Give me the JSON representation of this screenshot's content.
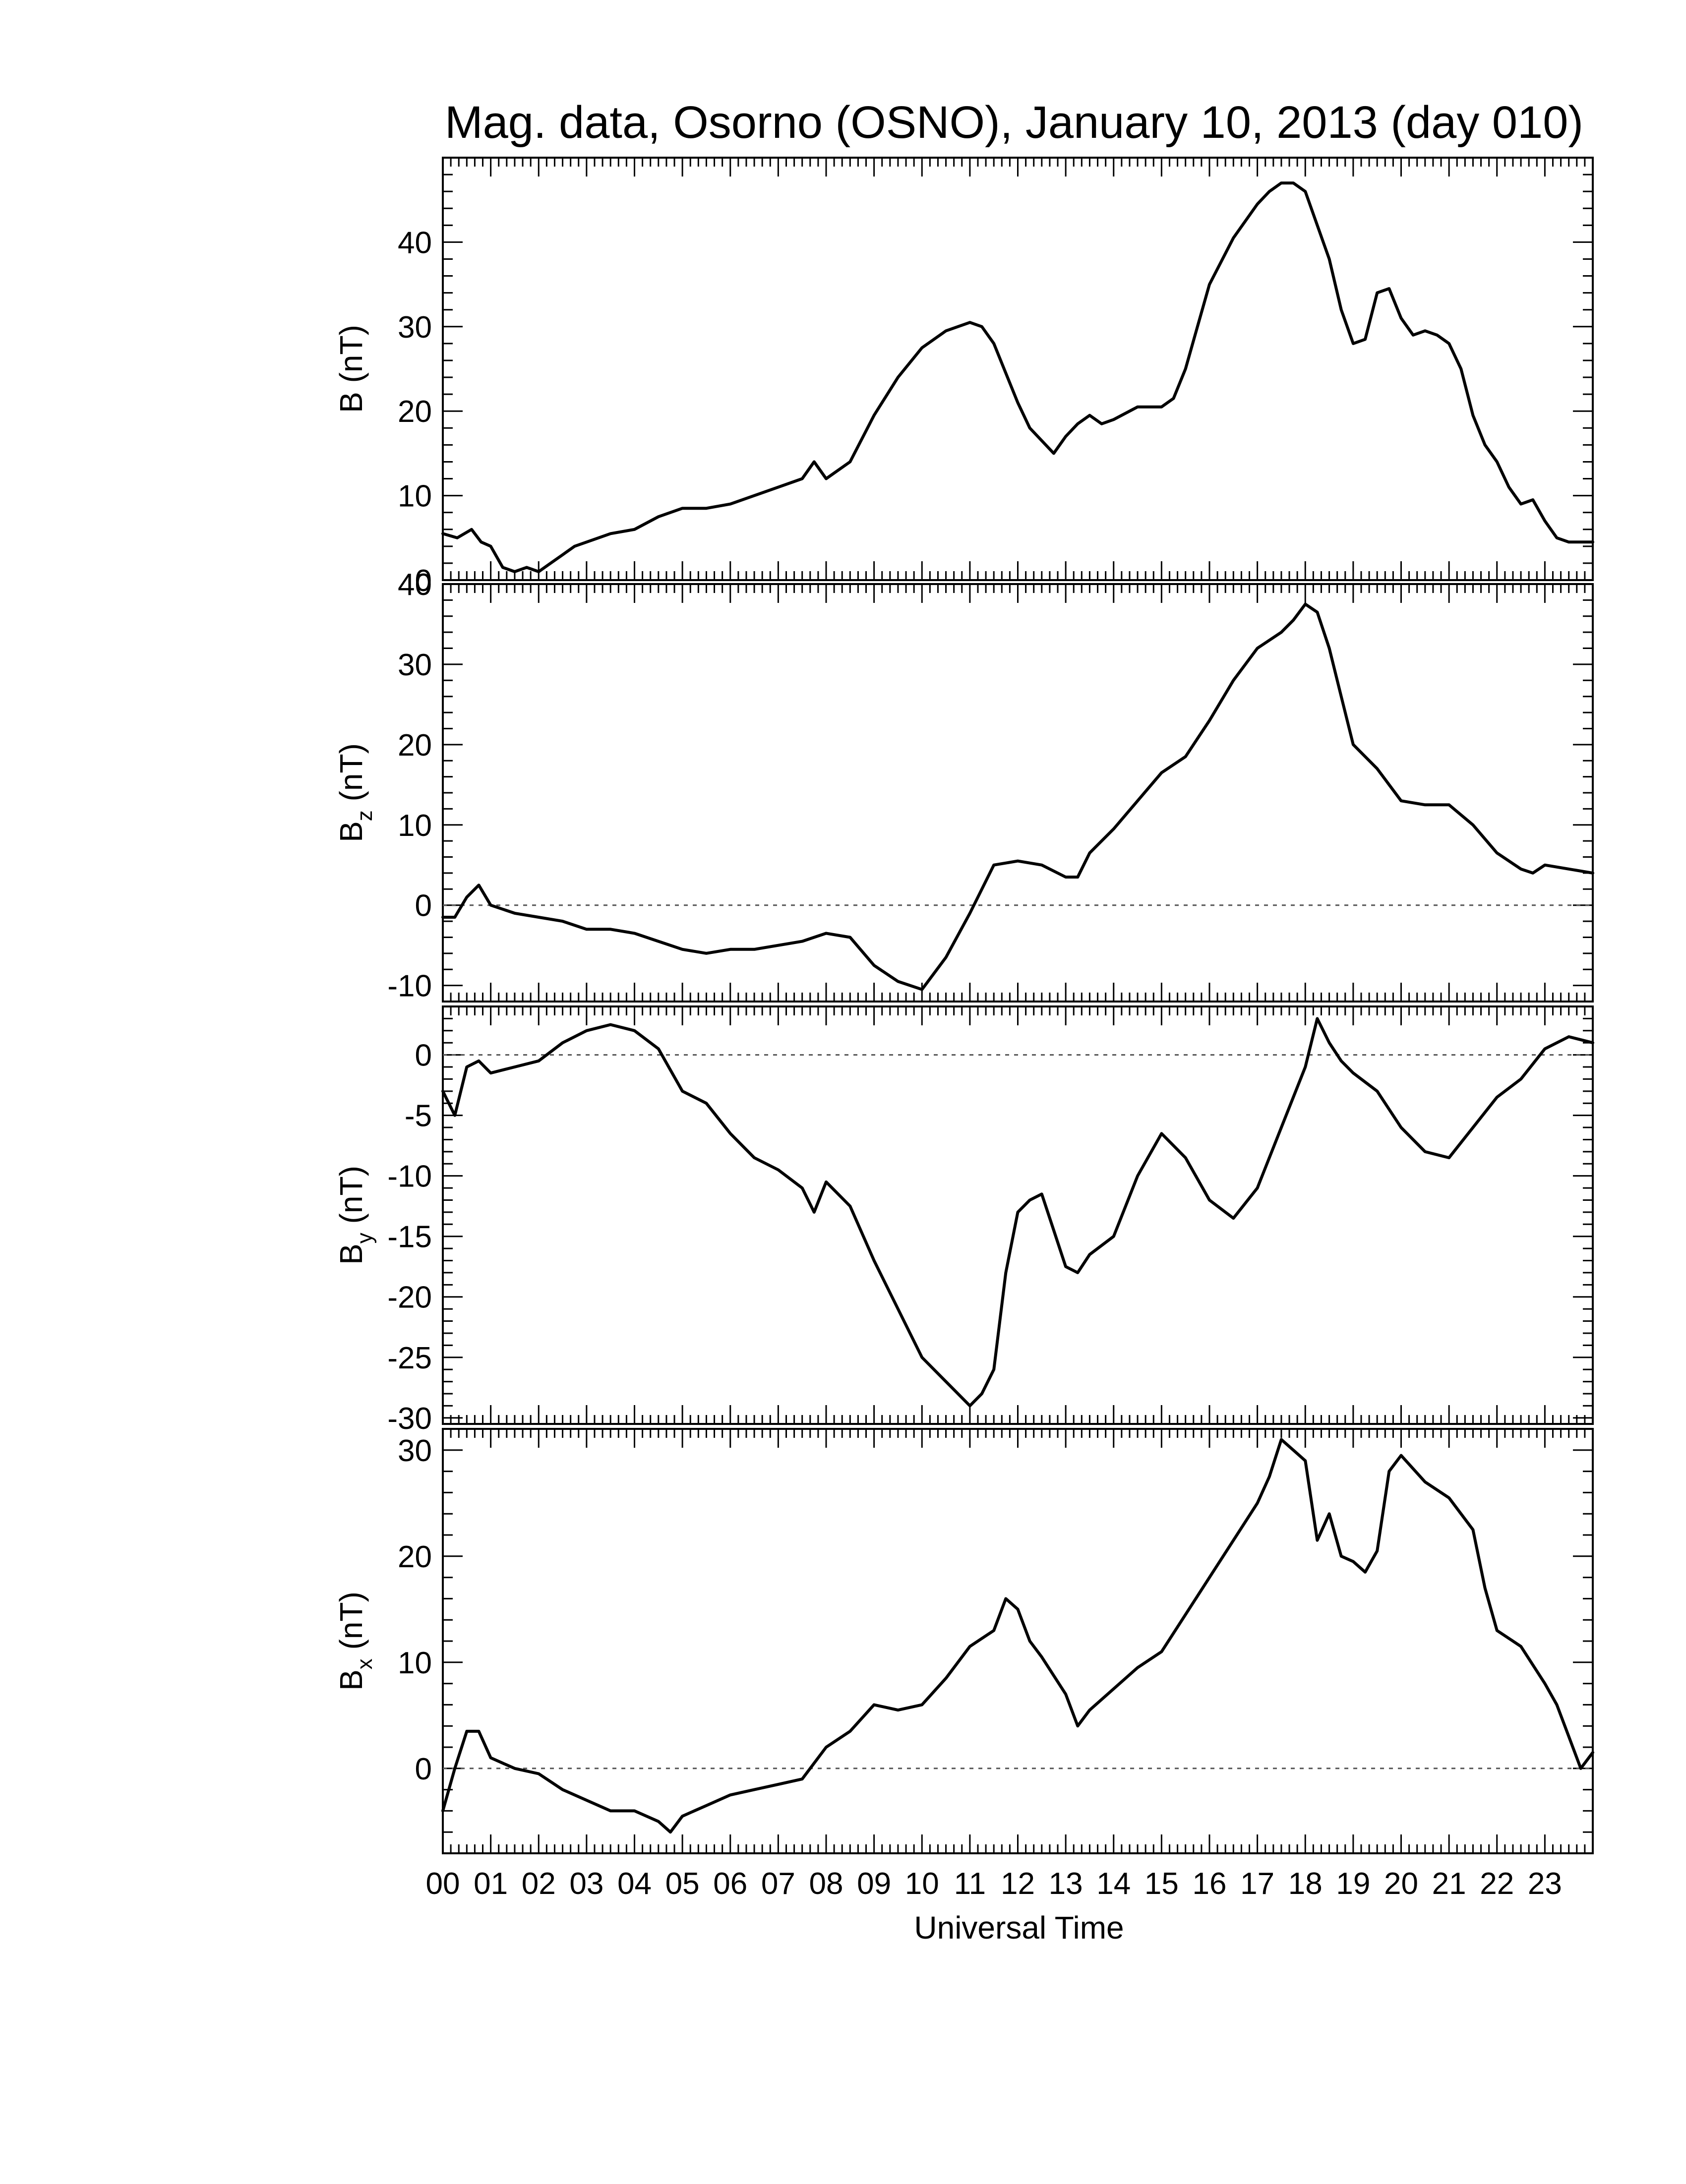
{
  "figure": {
    "title": "Mag. data, Osorno (OSNO), January 10, 2013 (day 010)",
    "xlabel": "Universal Time",
    "line_color": "#000000",
    "zero_line_color": "#555555"
  },
  "chart_data": [
    {
      "type": "line",
      "title": "",
      "ylabel": "B (nT)",
      "ylabel_main": "B",
      "ylabel_sub": "",
      "ylabel_unit": " (nT)",
      "xlim": [
        0,
        24
      ],
      "ylim": [
        0,
        50
      ],
      "yticks": [
        0,
        10,
        20,
        30,
        40
      ],
      "zero_line": false,
      "grid": false,
      "x": [
        0.0,
        0.3,
        0.6,
        0.8,
        1.0,
        1.25,
        1.5,
        1.75,
        2.0,
        2.25,
        2.5,
        2.75,
        3.0,
        3.5,
        4.0,
        4.5,
        5.0,
        5.5,
        6.0,
        6.5,
        7.0,
        7.5,
        7.75,
        8.0,
        8.5,
        9.0,
        9.5,
        10.0,
        10.5,
        11.0,
        11.25,
        11.5,
        11.75,
        12.0,
        12.25,
        12.5,
        12.75,
        13.0,
        13.25,
        13.5,
        13.75,
        14.0,
        14.5,
        15.0,
        15.25,
        15.5,
        15.75,
        16.0,
        16.5,
        17.0,
        17.25,
        17.5,
        17.75,
        18.0,
        18.25,
        18.5,
        18.75,
        19.0,
        19.25,
        19.5,
        19.75,
        20.0,
        20.25,
        20.5,
        20.75,
        21.0,
        21.25,
        21.5,
        21.75,
        22.0,
        22.25,
        22.5,
        22.75,
        23.0,
        23.25,
        23.5,
        23.75,
        24.0
      ],
      "y": [
        5.5,
        5.0,
        6.0,
        4.5,
        4.0,
        1.5,
        1.0,
        1.5,
        1.0,
        2.0,
        3.0,
        4.0,
        4.5,
        5.5,
        6.0,
        7.5,
        8.5,
        8.5,
        9.0,
        10.0,
        11.0,
        12.0,
        14.0,
        12.0,
        14.0,
        19.5,
        24.0,
        27.5,
        29.5,
        30.5,
        30.0,
        28.0,
        24.5,
        21.0,
        18.0,
        16.5,
        15.0,
        17.0,
        18.5,
        19.5,
        18.5,
        19.0,
        20.5,
        20.5,
        21.5,
        25.0,
        30.0,
        35.0,
        40.5,
        44.5,
        46.0,
        47.0,
        47.0,
        46.0,
        42.0,
        38.0,
        32.0,
        28.0,
        28.5,
        34.0,
        34.5,
        31.0,
        29.0,
        29.5,
        29.0,
        28.0,
        25.0,
        19.5,
        16.0,
        14.0,
        11.0,
        9.0,
        9.5,
        7.0,
        5.0,
        4.5,
        4.5,
        4.5
      ]
    },
    {
      "type": "line",
      "title": "",
      "ylabel": "Bz (nT)",
      "ylabel_main": "B",
      "ylabel_sub": "z",
      "ylabel_unit": " (nT)",
      "xlim": [
        0,
        24
      ],
      "ylim": [
        -12,
        40
      ],
      "yticks": [
        -10,
        0,
        10,
        20,
        30,
        40
      ],
      "zero_line": true,
      "grid": false,
      "x": [
        0.0,
        0.25,
        0.5,
        0.75,
        1.0,
        1.5,
        2.0,
        2.5,
        3.0,
        3.5,
        4.0,
        4.5,
        5.0,
        5.5,
        6.0,
        6.5,
        7.0,
        7.5,
        8.0,
        8.5,
        9.0,
        9.5,
        10.0,
        10.5,
        11.0,
        11.5,
        12.0,
        12.5,
        13.0,
        13.25,
        13.5,
        14.0,
        14.5,
        15.0,
        15.5,
        16.0,
        16.5,
        17.0,
        17.5,
        17.75,
        18.0,
        18.25,
        18.5,
        18.75,
        19.0,
        19.5,
        20.0,
        20.5,
        21.0,
        21.5,
        22.0,
        22.5,
        22.75,
        23.0,
        23.5,
        24.0
      ],
      "y": [
        -1.5,
        -1.5,
        1.0,
        2.5,
        0.0,
        -1.0,
        -1.5,
        -2.0,
        -3.0,
        -3.0,
        -3.5,
        -4.5,
        -5.5,
        -6.0,
        -5.5,
        -5.5,
        -5.0,
        -4.5,
        -3.5,
        -4.0,
        -7.5,
        -9.5,
        -10.5,
        -6.5,
        -1.0,
        5.0,
        5.5,
        5.0,
        3.5,
        3.5,
        6.5,
        9.5,
        13.0,
        16.5,
        18.5,
        23.0,
        28.0,
        32.0,
        34.0,
        35.5,
        37.5,
        36.5,
        32.0,
        26.0,
        20.0,
        17.0,
        13.0,
        12.5,
        12.5,
        10.0,
        6.5,
        4.5,
        4.0,
        5.0,
        4.5,
        4.0
      ]
    },
    {
      "type": "line",
      "title": "",
      "ylabel": "By (nT)",
      "ylabel_main": "B",
      "ylabel_sub": "y",
      "ylabel_unit": " (nT)",
      "xlim": [
        0,
        24
      ],
      "ylim": [
        -30.5,
        4
      ],
      "yticks": [
        -30,
        -25,
        -20,
        -15,
        -10,
        -5,
        0
      ],
      "zero_line": true,
      "grid": false,
      "x": [
        0.0,
        0.25,
        0.5,
        0.75,
        1.0,
        1.5,
        2.0,
        2.5,
        3.0,
        3.5,
        4.0,
        4.5,
        5.0,
        5.5,
        6.0,
        6.5,
        7.0,
        7.5,
        7.75,
        8.0,
        8.5,
        9.0,
        9.5,
        10.0,
        10.5,
        11.0,
        11.25,
        11.5,
        11.75,
        12.0,
        12.25,
        12.5,
        12.75,
        13.0,
        13.25,
        13.5,
        14.0,
        14.5,
        15.0,
        15.5,
        16.0,
        16.5,
        17.0,
        17.5,
        18.0,
        18.25,
        18.5,
        18.75,
        19.0,
        19.5,
        20.0,
        20.5,
        21.0,
        21.5,
        22.0,
        22.5,
        23.0,
        23.5,
        24.0
      ],
      "y": [
        -3.0,
        -5.0,
        -1.0,
        -0.5,
        -1.5,
        -1.0,
        -0.5,
        1.0,
        2.0,
        2.5,
        2.0,
        0.5,
        -3.0,
        -4.0,
        -6.5,
        -8.5,
        -9.5,
        -11.0,
        -13.0,
        -10.5,
        -12.5,
        -17.0,
        -21.0,
        -25.0,
        -27.0,
        -29.0,
        -28.0,
        -26.0,
        -18.0,
        -13.0,
        -12.0,
        -11.5,
        -14.5,
        -17.5,
        -18.0,
        -16.5,
        -15.0,
        -10.0,
        -6.5,
        -8.5,
        -12.0,
        -13.5,
        -11.0,
        -6.0,
        -1.0,
        3.0,
        1.0,
        -0.5,
        -1.5,
        -3.0,
        -6.0,
        -8.0,
        -8.5,
        -6.0,
        -3.5,
        -2.0,
        0.5,
        1.5,
        1.0
      ]
    },
    {
      "type": "line",
      "title": "",
      "ylabel": "Bx (nT)",
      "ylabel_main": "B",
      "ylabel_sub": "x",
      "ylabel_unit": " (nT)",
      "xlim": [
        0,
        24
      ],
      "ylim": [
        -8,
        32
      ],
      "yticks": [
        0,
        10,
        20,
        30
      ],
      "zero_line": true,
      "grid": false,
      "x": [
        0.0,
        0.25,
        0.5,
        0.75,
        1.0,
        1.5,
        2.0,
        2.5,
        3.0,
        3.5,
        4.0,
        4.5,
        4.75,
        5.0,
        5.5,
        6.0,
        6.5,
        7.0,
        7.5,
        8.0,
        8.5,
        9.0,
        9.5,
        10.0,
        10.5,
        11.0,
        11.5,
        11.75,
        12.0,
        12.25,
        12.5,
        13.0,
        13.25,
        13.5,
        14.0,
        14.5,
        15.0,
        15.5,
        16.0,
        16.5,
        17.0,
        17.25,
        17.5,
        17.75,
        18.0,
        18.25,
        18.5,
        18.75,
        19.0,
        19.25,
        19.5,
        19.75,
        20.0,
        20.5,
        21.0,
        21.5,
        21.75,
        22.0,
        22.5,
        23.0,
        23.25,
        23.5,
        23.75,
        24.0
      ],
      "y": [
        -4.0,
        0.0,
        3.5,
        3.5,
        1.0,
        0.0,
        -0.5,
        -2.0,
        -3.0,
        -4.0,
        -4.0,
        -5.0,
        -6.0,
        -4.5,
        -3.5,
        -2.5,
        -2.0,
        -1.5,
        -1.0,
        2.0,
        3.5,
        6.0,
        5.5,
        6.0,
        8.5,
        11.5,
        13.0,
        16.0,
        15.0,
        12.0,
        10.5,
        7.0,
        4.0,
        5.5,
        7.5,
        9.5,
        11.0,
        14.5,
        18.0,
        21.5,
        25.0,
        27.5,
        31.0,
        30.0,
        29.0,
        21.5,
        24.0,
        20.0,
        19.5,
        18.5,
        20.5,
        28.0,
        29.5,
        27.0,
        25.5,
        22.5,
        17.0,
        13.0,
        11.5,
        8.0,
        6.0,
        3.0,
        0.0,
        1.5
      ]
    }
  ]
}
